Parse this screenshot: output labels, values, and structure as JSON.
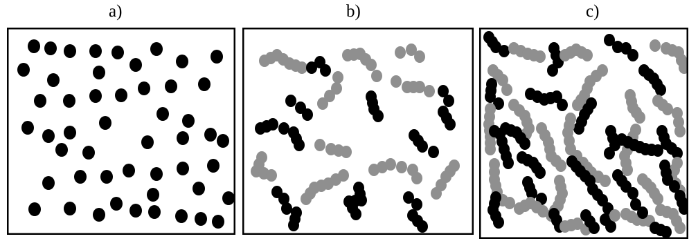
{
  "panels": [
    {
      "id": "a",
      "label": "a)"
    },
    {
      "id": "b",
      "label": "b)"
    },
    {
      "id": "c",
      "label": "c)"
    }
  ],
  "colors": {
    "conductive_particle": "#000000",
    "insulating_particle": "#8f8f8f",
    "background": "#ffffff",
    "frame": "#000000"
  }
}
